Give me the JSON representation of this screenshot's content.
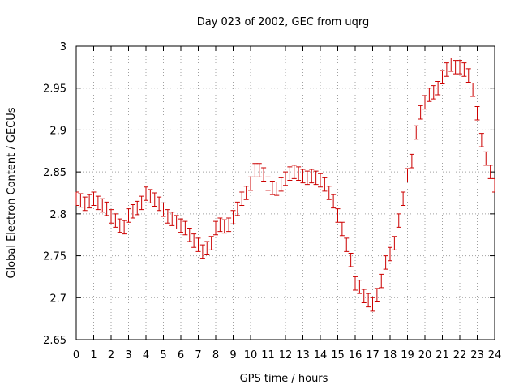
{
  "chart_data": {
    "type": "scatter",
    "title": "Day 023 of 2002, GEC from uqrg",
    "xlabel": "GPS time / hours",
    "ylabel": "Global Electron Content / GECUs",
    "xlim": [
      0,
      24
    ],
    "ylim": [
      2.65,
      3.0
    ],
    "xticks": [
      0,
      1,
      2,
      3,
      4,
      5,
      6,
      7,
      8,
      9,
      10,
      11,
      12,
      13,
      14,
      15,
      16,
      17,
      18,
      19,
      20,
      21,
      22,
      23,
      24
    ],
    "yticks": [
      2.65,
      2.7,
      2.75,
      2.8,
      2.85,
      2.9,
      2.95,
      3.0
    ],
    "ytick_labels": [
      "2.65",
      "2.7",
      "2.75",
      "2.8",
      "2.85",
      "2.9",
      "2.95",
      "3"
    ],
    "grid": true,
    "error_bar_half_width": 0.008,
    "colors": {
      "series": "#cc0000",
      "grid": "#a0a0a0"
    },
    "series": [
      {
        "x": [
          0.0,
          0.25,
          0.5,
          0.75,
          1.0,
          1.25,
          1.5,
          1.75,
          2.0,
          2.25,
          2.5,
          2.75,
          3.0,
          3.25,
          3.5,
          3.75,
          4.0,
          4.25,
          4.5,
          4.75,
          5.0,
          5.25,
          5.5,
          5.75,
          6.0,
          6.25,
          6.5,
          6.75,
          7.0,
          7.25,
          7.5,
          7.75,
          8.0,
          8.25,
          8.5,
          8.75,
          9.0,
          9.25,
          9.5,
          9.75,
          10.0,
          10.25,
          10.5,
          10.75,
          11.0,
          11.25,
          11.5,
          11.75,
          12.0,
          12.25,
          12.5,
          12.75,
          13.0,
          13.25,
          13.5,
          13.75,
          14.0,
          14.25,
          14.5,
          14.75,
          15.0,
          15.25,
          15.5,
          15.75,
          16.0,
          16.25,
          16.5,
          16.75,
          17.0,
          17.25,
          17.5,
          17.75,
          18.0,
          18.25,
          18.5,
          18.75,
          19.0,
          19.25,
          19.5,
          19.75,
          20.0,
          20.25,
          20.5,
          20.75,
          21.0,
          21.25,
          21.5,
          21.75,
          22.0,
          22.25,
          22.5,
          22.75,
          23.0,
          23.25,
          23.5,
          23.75,
          24.0
        ],
        "y": [
          2.818,
          2.816,
          2.812,
          2.815,
          2.818,
          2.813,
          2.81,
          2.806,
          2.797,
          2.792,
          2.786,
          2.784,
          2.798,
          2.803,
          2.807,
          2.813,
          2.824,
          2.821,
          2.817,
          2.812,
          2.805,
          2.797,
          2.794,
          2.79,
          2.786,
          2.783,
          2.775,
          2.768,
          2.763,
          2.755,
          2.759,
          2.765,
          2.783,
          2.787,
          2.785,
          2.787,
          2.796,
          2.806,
          2.818,
          2.825,
          2.836,
          2.852,
          2.852,
          2.847,
          2.836,
          2.831,
          2.83,
          2.835,
          2.842,
          2.848,
          2.85,
          2.848,
          2.845,
          2.843,
          2.845,
          2.843,
          2.84,
          2.835,
          2.825,
          2.815,
          2.798,
          2.782,
          2.763,
          2.745,
          2.717,
          2.713,
          2.702,
          2.697,
          2.692,
          2.703,
          2.72,
          2.742,
          2.752,
          2.765,
          2.792,
          2.818,
          2.846,
          2.863,
          2.897,
          2.921,
          2.933,
          2.942,
          2.945,
          2.95,
          2.963,
          2.972,
          2.978,
          2.975,
          2.975,
          2.972,
          2.965,
          2.948,
          2.92,
          2.888,
          2.866,
          2.85,
          2.834
        ]
      }
    ]
  }
}
